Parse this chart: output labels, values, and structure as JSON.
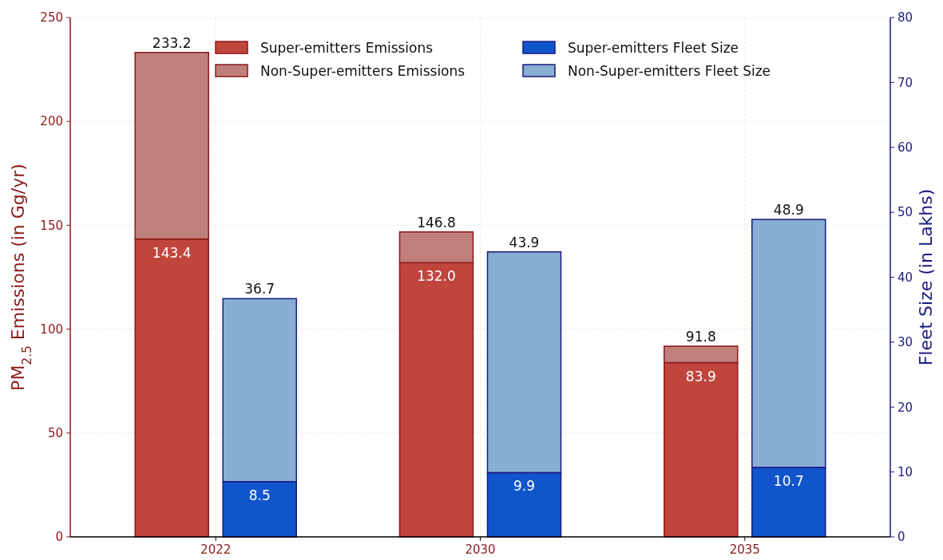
{
  "chart_data": {
    "type": "bar",
    "stacked": true,
    "categories": [
      "2022",
      "2030",
      "2035"
    ],
    "ylabel": "PM$_{2.5}$ Emissions (in Gg/yr)",
    "y2label": "Fleet Size (in Lakhs)",
    "ylim": [
      0,
      250
    ],
    "yticks": [
      0,
      50,
      100,
      150,
      200,
      250
    ],
    "y2lim": [
      0,
      80
    ],
    "y2ticks": [
      0,
      10,
      20,
      30,
      40,
      50,
      60,
      70,
      80
    ],
    "grid": true,
    "legend": "top",
    "totals": [
      "233.2",
      "146.8",
      "91.8",
      "36.7",
      "43.9",
      "48.9"
    ],
    "series": [
      {
        "name": "Super-emitters Emissions",
        "color": "#c0453d",
        "axis": "y",
        "values": [
          143.4,
          132.0,
          83.9
        ],
        "value_labels": [
          "143.4",
          "132.0",
          "83.9"
        ]
      },
      {
        "name": "Non-Super-emitters Emissions",
        "color": "#c17f7c",
        "axis": "y",
        "values": [
          89.8,
          14.8,
          7.9
        ]
      },
      {
        "name": "Super-emitters Fleet Size",
        "color": "#1155cc",
        "axis": "y2",
        "values": [
          8.5,
          9.9,
          10.7
        ],
        "value_labels": [
          "8.5",
          "9.9",
          "10.7"
        ]
      },
      {
        "name": "Non-Super-emitters Fleet Size",
        "color": "#88aed3",
        "axis": "y2",
        "values": [
          28.2,
          34.0,
          38.2
        ]
      }
    ]
  }
}
